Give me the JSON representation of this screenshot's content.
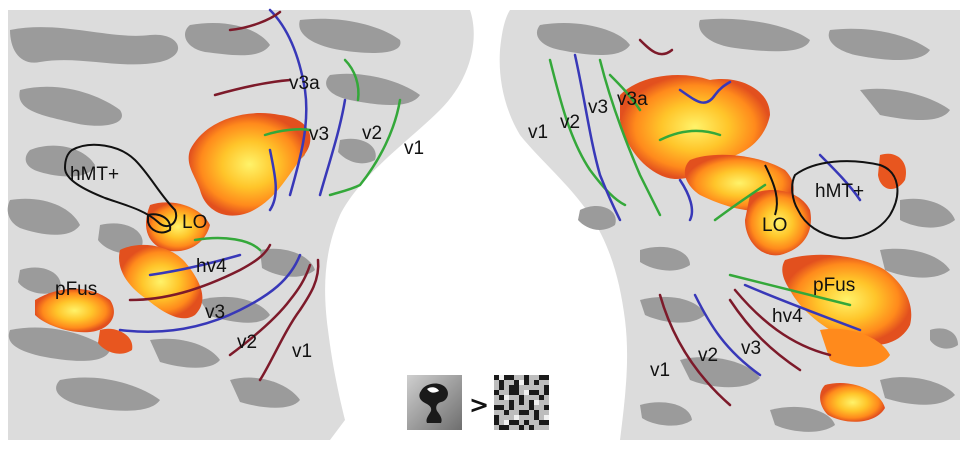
{
  "colors": {
    "background": "#ffffff",
    "cortex_light": "#dcdcdc",
    "cortex_dark": "#9a9a9a",
    "activation_low": "#e8561f",
    "activation_mid": "#ff9a1a",
    "activation_high": "#fff14a",
    "boundary_v1": "#7d1a2a",
    "boundary_v2": "#3838b8",
    "boundary_v3": "#34a83a",
    "roi_outline": "#111111"
  },
  "left_hemisphere": {
    "labels": {
      "v3a": "v3a",
      "v3": "v3",
      "v2": "v2",
      "v1": "v1",
      "hmt": "hMT+",
      "lo": "LO",
      "hv4": "hv4",
      "pfus": "pFus",
      "v3_ventral": "v3",
      "v2_ventral": "v2",
      "v1_ventral": "v1"
    }
  },
  "right_hemisphere": {
    "labels": {
      "v1": "v1",
      "v2": "v2",
      "v3": "v3",
      "v3a": "v3a",
      "hmt": "hMT+",
      "lo": "LO",
      "pfus": "pFus",
      "hv4": "hv4",
      "v1_ventral": "v1",
      "v2_ventral": "v2",
      "v3_ventral": "v3"
    }
  },
  "contrast": {
    "operator": ">",
    "object_icon": "object-image-icon",
    "scrambled_icon": "scrambled-image-icon"
  }
}
